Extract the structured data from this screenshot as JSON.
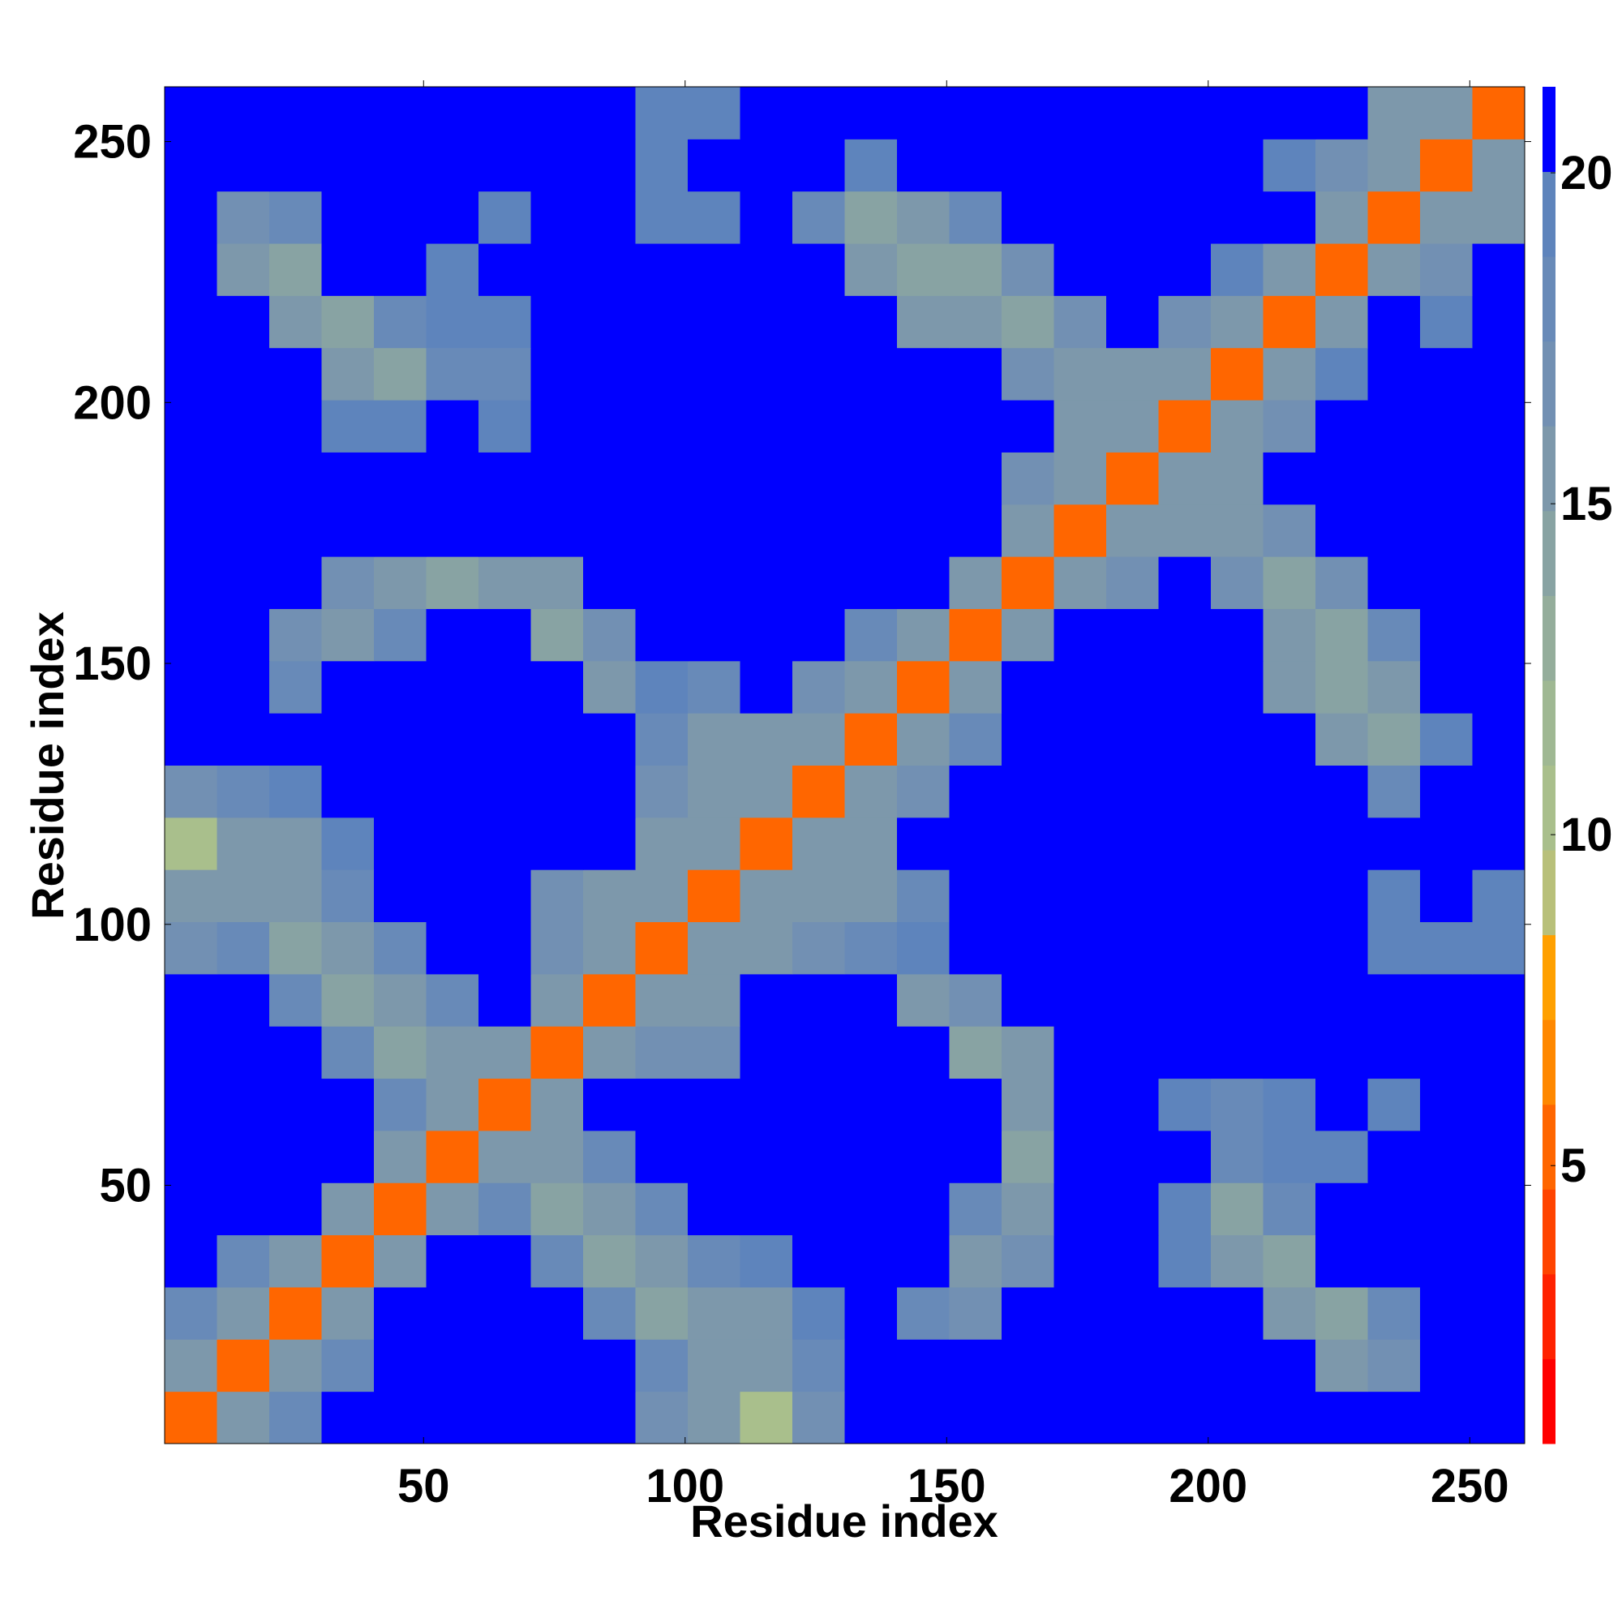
{
  "chart_data": {
    "type": "heatmap",
    "xlabel": "Residue index",
    "ylabel": "Residue index",
    "x": [
      5.5,
      15.5,
      25.5,
      35.5,
      45.5,
      55.5,
      65.5,
      75.5,
      85.5,
      95.5,
      105.5,
      115.5,
      125.5,
      135.5,
      145.5,
      155.5,
      165.5,
      175.5,
      185.5,
      195.5,
      205.5,
      215.5,
      225.5,
      235.5,
      245.5,
      255.5
    ],
    "y": [
      5.5,
      15.5,
      25.5,
      35.5,
      45.5,
      55.5,
      65.5,
      75.5,
      85.5,
      95.5,
      105.5,
      115.5,
      125.5,
      135.5,
      145.5,
      155.5,
      165.5,
      175.5,
      185.5,
      195.5,
      205.5,
      215.5,
      225.5,
      235.5,
      245.5,
      255.5
    ],
    "z": [
      [
        5,
        16,
        18,
        22,
        22,
        22,
        22,
        22,
        22,
        17,
        15,
        11,
        17,
        22,
        22,
        22,
        22,
        22,
        22,
        22,
        22,
        22,
        22,
        22,
        22,
        22
      ],
      [
        16,
        5,
        16,
        18,
        22,
        22,
        22,
        22,
        22,
        18,
        16,
        15,
        18,
        22,
        22,
        22,
        22,
        22,
        22,
        22,
        22,
        22,
        16,
        17,
        22,
        22
      ],
      [
        18,
        16,
        5,
        16,
        22,
        22,
        22,
        22,
        18,
        14,
        15,
        16,
        19,
        22,
        18,
        17,
        22,
        22,
        22,
        22,
        22,
        15,
        14,
        18,
        22,
        22
      ],
      [
        22,
        18,
        16,
        5,
        16,
        22,
        22,
        18,
        14,
        15,
        18,
        19,
        22,
        22,
        22,
        16,
        17,
        22,
        22,
        19,
        15,
        14,
        22,
        22,
        22,
        22
      ],
      [
        22,
        22,
        22,
        16,
        5,
        16,
        18,
        14,
        15,
        18,
        22,
        22,
        22,
        22,
        22,
        18,
        15,
        22,
        22,
        19,
        14,
        18,
        22,
        22,
        22,
        22
      ],
      [
        22,
        22,
        22,
        22,
        16,
        5,
        16,
        15,
        18,
        22,
        22,
        22,
        22,
        22,
        22,
        22,
        14,
        22,
        22,
        22,
        18,
        19,
        20,
        22,
        22,
        22
      ],
      [
        22,
        22,
        22,
        22,
        18,
        16,
        5,
        16,
        22,
        22,
        22,
        22,
        22,
        22,
        22,
        22,
        15,
        22,
        22,
        19,
        18,
        19,
        22,
        20,
        22,
        22
      ],
      [
        22,
        22,
        22,
        18,
        14,
        15,
        16,
        5,
        16,
        17,
        17,
        22,
        22,
        22,
        22,
        14,
        16,
        22,
        22,
        22,
        22,
        22,
        22,
        22,
        22,
        22
      ],
      [
        22,
        22,
        18,
        14,
        15,
        18,
        22,
        16,
        5,
        16,
        16,
        22,
        22,
        22,
        15,
        17,
        22,
        22,
        22,
        22,
        22,
        22,
        22,
        22,
        22,
        22
      ],
      [
        17,
        18,
        14,
        15,
        18,
        22,
        22,
        17,
        16,
        5,
        16,
        15,
        17,
        18,
        19,
        22,
        22,
        22,
        22,
        22,
        22,
        22,
        22,
        19,
        20,
        20
      ],
      [
        15,
        16,
        15,
        18,
        22,
        22,
        22,
        17,
        16,
        16,
        5,
        16,
        15,
        16,
        18,
        22,
        22,
        22,
        22,
        22,
        22,
        22,
        22,
        20,
        22,
        20
      ],
      [
        11,
        15,
        16,
        19,
        22,
        22,
        22,
        22,
        22,
        15,
        16,
        5,
        16,
        15,
        22,
        22,
        22,
        22,
        22,
        22,
        22,
        22,
        22,
        22,
        22,
        22
      ],
      [
        17,
        18,
        19,
        22,
        22,
        22,
        22,
        22,
        22,
        17,
        15,
        16,
        5,
        16,
        17,
        22,
        22,
        22,
        22,
        22,
        22,
        22,
        22,
        18,
        22,
        22
      ],
      [
        22,
        22,
        22,
        22,
        22,
        22,
        22,
        22,
        22,
        18,
        16,
        15,
        16,
        5,
        16,
        18,
        22,
        22,
        22,
        22,
        22,
        22,
        16,
        14,
        19,
        22
      ],
      [
        22,
        22,
        18,
        22,
        22,
        22,
        22,
        22,
        15,
        19,
        18,
        22,
        17,
        16,
        5,
        16,
        22,
        22,
        22,
        22,
        22,
        16,
        14,
        15,
        22,
        22
      ],
      [
        22,
        22,
        17,
        16,
        18,
        22,
        22,
        14,
        17,
        22,
        22,
        22,
        22,
        18,
        16,
        5,
        16,
        22,
        22,
        22,
        22,
        16,
        14,
        18,
        22,
        22
      ],
      [
        22,
        22,
        22,
        17,
        15,
        14,
        15,
        16,
        22,
        22,
        22,
        22,
        22,
        22,
        22,
        16,
        5,
        16,
        17,
        22,
        17,
        14,
        17,
        22,
        22,
        22
      ],
      [
        22,
        22,
        22,
        22,
        22,
        22,
        22,
        22,
        22,
        22,
        22,
        22,
        22,
        22,
        22,
        22,
        16,
        5,
        16,
        16,
        15,
        17,
        22,
        22,
        22,
        22
      ],
      [
        22,
        22,
        22,
        22,
        22,
        22,
        22,
        22,
        22,
        22,
        22,
        22,
        22,
        22,
        22,
        22,
        17,
        16,
        5,
        16,
        16,
        22,
        22,
        22,
        22,
        22
      ],
      [
        22,
        22,
        22,
        19,
        19,
        22,
        19,
        22,
        22,
        22,
        22,
        22,
        22,
        22,
        22,
        22,
        22,
        16,
        16,
        5,
        16,
        17,
        22,
        22,
        22,
        22
      ],
      [
        22,
        22,
        22,
        15,
        14,
        18,
        18,
        22,
        22,
        22,
        22,
        22,
        22,
        22,
        22,
        22,
        17,
        15,
        16,
        16,
        5,
        16,
        19,
        22,
        22,
        22
      ],
      [
        22,
        22,
        15,
        14,
        18,
        19,
        19,
        22,
        22,
        22,
        22,
        22,
        22,
        22,
        16,
        16,
        14,
        17,
        22,
        17,
        16,
        5,
        16,
        22,
        19,
        22
      ],
      [
        22,
        16,
        14,
        22,
        22,
        20,
        22,
        22,
        22,
        22,
        22,
        22,
        22,
        16,
        14,
        14,
        17,
        22,
        22,
        22,
        19,
        16,
        5,
        16,
        17,
        22
      ],
      [
        22,
        17,
        18,
        22,
        22,
        22,
        20,
        22,
        22,
        19,
        20,
        22,
        18,
        14,
        15,
        18,
        22,
        22,
        22,
        22,
        22,
        22,
        16,
        5,
        16,
        16
      ],
      [
        22,
        22,
        22,
        22,
        22,
        22,
        22,
        22,
        22,
        20,
        22,
        22,
        22,
        19,
        22,
        22,
        22,
        22,
        22,
        22,
        22,
        19,
        17,
        16,
        5,
        16
      ],
      [
        22,
        22,
        22,
        22,
        22,
        22,
        22,
        22,
        22,
        20,
        20,
        22,
        22,
        22,
        22,
        22,
        22,
        22,
        22,
        22,
        22,
        22,
        22,
        16,
        16,
        5
      ]
    ],
    "xlim": [
      0.5,
      260.5
    ],
    "ylim": [
      0.5,
      260.5
    ],
    "xticks": [
      50,
      100,
      150,
      200,
      250
    ],
    "yticks": [
      50,
      100,
      150,
      200,
      250
    ],
    "zlim": [
      0.8,
      21.3
    ],
    "zticks": [
      5,
      10,
      15,
      20
    ],
    "colors": [
      "#ff0000",
      "#ff2200",
      "#ff4400",
      "#ff6600",
      "#ff8800",
      "#ffa000",
      "#b8c07a",
      "#a9bf8c",
      "#9fb893",
      "#94ad9b",
      "#88a3a3",
      "#7d98ab",
      "#7290b3",
      "#688ab8",
      "#5e84bc",
      "#0000ff"
    ]
  }
}
